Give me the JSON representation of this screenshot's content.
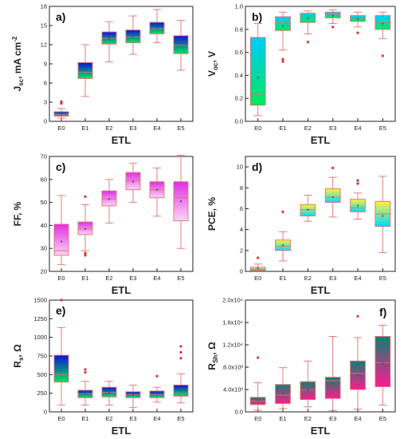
{
  "chart_data": [
    {
      "panel": "a)",
      "type": "box",
      "xlabel": "ETL",
      "ylabel": "J_sc, mA cm^-2",
      "ylabel_parts": {
        "main": "J",
        "sub": "sc",
        "unit": ", mA cm",
        "sup": "-2"
      },
      "categories": [
        "E0",
        "E1",
        "E2",
        "E3",
        "E4",
        "E5"
      ],
      "ylim": [
        0,
        18
      ],
      "yticks": [
        "0",
        "3",
        "6",
        "9",
        "12",
        "15",
        "18"
      ],
      "gradient": [
        "#00e85a",
        "#1010d8"
      ],
      "boxes": [
        {
          "min": 0.5,
          "q1": 0.8,
          "median": 1.1,
          "q3": 1.5,
          "max": 2.0,
          "mean": 1.1,
          "outliers": [
            2.8,
            3.1
          ]
        },
        {
          "min": 3.9,
          "q1": 6.7,
          "median": 7.7,
          "q3": 9.2,
          "max": 12.0,
          "mean": 7.9,
          "outliers": []
        },
        {
          "min": 9.3,
          "q1": 12.1,
          "median": 13.0,
          "q3": 14.0,
          "max": 15.6,
          "mean": 13.0,
          "outliers": []
        },
        {
          "min": 10.5,
          "q1": 12.3,
          "median": 13.2,
          "q3": 14.3,
          "max": 16.5,
          "mean": 13.3,
          "outliers": []
        },
        {
          "min": 12.3,
          "q1": 13.7,
          "median": 14.5,
          "q3": 15.5,
          "max": 17.5,
          "mean": 14.6,
          "outliers": []
        },
        {
          "min": 8.0,
          "q1": 10.6,
          "median": 11.9,
          "q3": 13.4,
          "max": 15.8,
          "mean": 12.2,
          "outliers": []
        }
      ]
    },
    {
      "panel": "b)",
      "type": "box",
      "xlabel": "ETL",
      "ylabel": "V_oc, V",
      "ylabel_parts": {
        "main": "V",
        "sub": "oc",
        "unit": ", V",
        "sup": ""
      },
      "categories": [
        "E0",
        "E1",
        "E2",
        "E3",
        "E4",
        "E5"
      ],
      "ylim": [
        0,
        1.0
      ],
      "yticks": [
        "0.0",
        "0.2",
        "0.4",
        "0.6",
        "0.8",
        "1.0"
      ],
      "gradient": [
        "#00e85a",
        "#00ccff"
      ],
      "boxes": [
        {
          "min": 0.05,
          "q1": 0.14,
          "median": 0.23,
          "q3": 0.73,
          "max": 0.85,
          "mean": 0.38,
          "outliers": []
        },
        {
          "min": 0.62,
          "q1": 0.79,
          "median": 0.86,
          "q3": 0.91,
          "max": 0.95,
          "mean": 0.83,
          "outliers": [
            0.52,
            0.54
          ]
        },
        {
          "min": 0.76,
          "q1": 0.86,
          "median": 0.92,
          "q3": 0.94,
          "max": 0.96,
          "mean": 0.9,
          "outliers": [
            0.69
          ]
        },
        {
          "min": 0.85,
          "q1": 0.9,
          "median": 0.93,
          "q3": 0.95,
          "max": 0.97,
          "mean": 0.92,
          "outliers": [
            0.82
          ]
        },
        {
          "min": 0.82,
          "q1": 0.87,
          "median": 0.9,
          "q3": 0.92,
          "max": 0.95,
          "mean": 0.89,
          "outliers": [
            0.77
          ]
        },
        {
          "min": 0.72,
          "q1": 0.8,
          "median": 0.86,
          "q3": 0.92,
          "max": 0.95,
          "mean": 0.85,
          "outliers": [
            0.57
          ]
        }
      ]
    },
    {
      "panel": "c)",
      "type": "box",
      "xlabel": "ETL",
      "ylabel": "FF, %",
      "ylabel_parts": {
        "main": "FF, %",
        "sub": "",
        "unit": "",
        "sup": ""
      },
      "categories": [
        "E0",
        "E1",
        "E2",
        "E3",
        "E4",
        "E5"
      ],
      "ylim": [
        20,
        70
      ],
      "yticks": [
        "20",
        "30",
        "40",
        "50",
        "60",
        "70"
      ],
      "gradient": [
        "#fbd6f7",
        "#e02ee0"
      ],
      "boxes": [
        {
          "min": 23.0,
          "q1": 27.0,
          "median": 29.0,
          "q3": 40.5,
          "max": 53.0,
          "mean": 33.0,
          "outliers": []
        },
        {
          "min": 29.0,
          "q1": 36.0,
          "median": 38.5,
          "q3": 41.5,
          "max": 49.0,
          "mean": 38.5,
          "outliers": [
            27.0,
            28.0,
            52.5
          ]
        },
        {
          "min": 41.0,
          "q1": 48.5,
          "median": 51.5,
          "q3": 55.0,
          "max": 60.0,
          "mean": 51.5,
          "outliers": []
        },
        {
          "min": 50.0,
          "q1": 55.5,
          "median": 59.5,
          "q3": 63.0,
          "max": 67.0,
          "mean": 59.0,
          "outliers": []
        },
        {
          "min": 44.0,
          "q1": 52.0,
          "median": 55.5,
          "q3": 59.0,
          "max": 65.0,
          "mean": 55.5,
          "outliers": []
        },
        {
          "min": 30.0,
          "q1": 42.0,
          "median": 52.0,
          "q3": 59.0,
          "max": 70.5,
          "mean": 50.5,
          "outliers": []
        }
      ]
    },
    {
      "panel": "d)",
      "type": "box",
      "xlabel": "ETL",
      "ylabel": "PCE, %",
      "ylabel_parts": {
        "main": "PCE, %",
        "sub": "",
        "unit": "",
        "sup": ""
      },
      "categories": [
        "E0",
        "E1",
        "E2",
        "E3",
        "E4",
        "E5"
      ],
      "ylim": [
        0,
        11
      ],
      "yticks": [
        "0",
        "2",
        "4",
        "6",
        "8",
        "10"
      ],
      "tick_values": [
        0,
        2,
        4,
        6,
        8,
        10
      ],
      "gradient": [
        "#00dcff",
        "#fff238"
      ],
      "boxes": [
        {
          "min": 0.05,
          "q1": 0.1,
          "median": 0.2,
          "q3": 0.4,
          "max": 0.7,
          "mean": 0.3,
          "outliers": [
            1.3
          ]
        },
        {
          "min": 1.0,
          "q1": 2.0,
          "median": 2.4,
          "q3": 3.0,
          "max": 3.8,
          "mean": 2.5,
          "outliers": [
            5.7
          ]
        },
        {
          "min": 4.8,
          "q1": 5.3,
          "median": 5.9,
          "q3": 6.4,
          "max": 7.3,
          "mean": 5.9,
          "outliers": []
        },
        {
          "min": 5.2,
          "q1": 6.6,
          "median": 7.1,
          "q3": 7.9,
          "max": 9.0,
          "mean": 7.1,
          "outliers": [
            9.9
          ]
        },
        {
          "min": 5.0,
          "q1": 5.7,
          "median": 6.1,
          "q3": 6.9,
          "max": 7.5,
          "mean": 6.3,
          "outliers": [
            8.4,
            8.7
          ]
        },
        {
          "min": 1.8,
          "q1": 4.3,
          "median": 5.5,
          "q3": 6.7,
          "max": 9.1,
          "mean": 5.3,
          "outliers": []
        }
      ]
    },
    {
      "panel": "e)",
      "type": "box",
      "xlabel": "ETL",
      "ylabel": "R_s, Ω",
      "ylabel_parts": {
        "main": "R",
        "sub": "s",
        "unit": ", Ω",
        "sup": ""
      },
      "categories": [
        "E0",
        "E1",
        "E2",
        "E3",
        "E4",
        "E5"
      ],
      "ylim": [
        0,
        1500
      ],
      "yticks": [
        "0",
        "250",
        "500",
        "750",
        "1000",
        "1250",
        "1500"
      ],
      "gradient": [
        "#00e85a",
        "#1010d8"
      ],
      "boxes": [
        {
          "min": 90,
          "q1": 400,
          "median": 500,
          "q3": 760,
          "max": 1130,
          "mean": 560,
          "outliers": [
            1500
          ]
        },
        {
          "min": 90,
          "q1": 190,
          "median": 240,
          "q3": 290,
          "max": 410,
          "mean": 250,
          "outliers": [
            530,
            570
          ]
        },
        {
          "min": 90,
          "q1": 200,
          "median": 260,
          "q3": 330,
          "max": 410,
          "mean": 260,
          "outliers": []
        },
        {
          "min": 60,
          "q1": 190,
          "median": 230,
          "q3": 270,
          "max": 360,
          "mean": 230,
          "outliers": []
        },
        {
          "min": 130,
          "q1": 190,
          "median": 230,
          "q3": 280,
          "max": 330,
          "mean": 240,
          "outliers": [
            480
          ]
        },
        {
          "min": 120,
          "q1": 210,
          "median": 250,
          "q3": 360,
          "max": 510,
          "mean": 300,
          "outliers": [
            720,
            800,
            880
          ]
        }
      ]
    },
    {
      "panel": "f)",
      "type": "box",
      "xlabel": "ETL",
      "ylabel": "R_Sh, Ω",
      "ylabel_parts": {
        "main": "R",
        "sub": "Sh",
        "unit": ", Ω",
        "sup": ""
      },
      "categories": [
        "E0",
        "E1",
        "E2",
        "E3",
        "E4",
        "E5"
      ],
      "ylim": [
        0,
        20000
      ],
      "yticks": [
        "0.0",
        "4.0x10³",
        "8.0x10³",
        "1.2x10⁴",
        "1.6x10⁴",
        "2.0x10⁴"
      ],
      "gradient": [
        "#ff1a90",
        "#108070"
      ],
      "boxes": [
        {
          "min": 300,
          "q1": 1300,
          "median": 1900,
          "q3": 2600,
          "max": 5200,
          "mean": 2100,
          "outliers": [
            9700
          ]
        },
        {
          "min": 600,
          "q1": 1500,
          "median": 3000,
          "q3": 4900,
          "max": 7900,
          "mean": 3200,
          "outliers": []
        },
        {
          "min": 900,
          "q1": 2200,
          "median": 3900,
          "q3": 5400,
          "max": 9100,
          "mean": 3900,
          "outliers": []
        },
        {
          "min": 200,
          "q1": 2400,
          "median": 5600,
          "q3": 6200,
          "max": 13500,
          "mean": 5000,
          "outliers": []
        },
        {
          "min": 500,
          "q1": 4000,
          "median": 6900,
          "q3": 9100,
          "max": 13300,
          "mean": 6600,
          "outliers": [
            17100
          ]
        },
        {
          "min": 1200,
          "q1": 4500,
          "median": 8800,
          "q3": 13500,
          "max": 15500,
          "mean": 8700,
          "outliers": []
        }
      ]
    }
  ]
}
